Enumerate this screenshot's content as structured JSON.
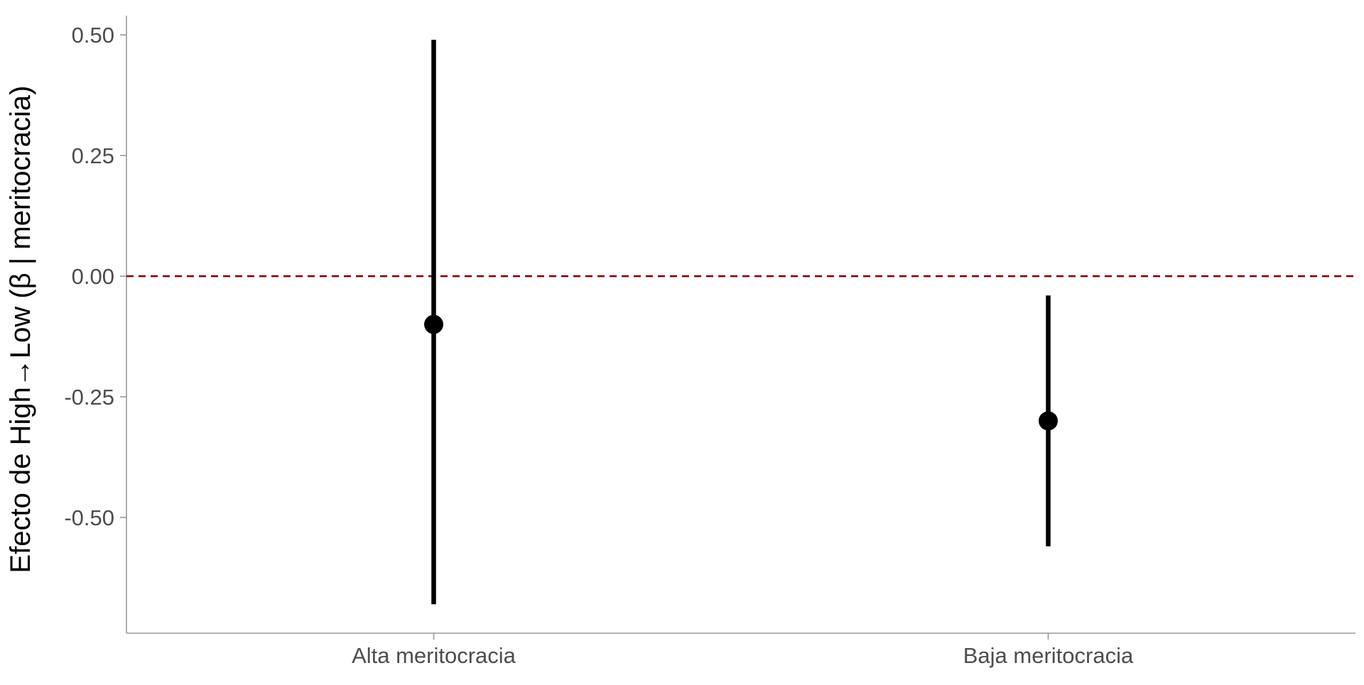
{
  "chart_data": {
    "type": "scatter",
    "subtype": "point-range",
    "title": "",
    "xlabel": "",
    "ylabel": "Efecto de High→Low (β | meritocracia)",
    "categories": [
      "Alta meritocracia",
      "Baja meritocracia"
    ],
    "series": [
      {
        "estimate": [
          -0.1,
          -0.3
        ],
        "ci_low": [
          -0.68,
          -0.56
        ],
        "ci_high": [
          0.49,
          -0.04
        ]
      }
    ],
    "ylim": [
      -0.74,
      0.54
    ],
    "yticks": [
      0.5,
      0.25,
      0.0,
      -0.25,
      -0.5
    ],
    "ytick_labels": [
      "0.50",
      "0.25",
      "0.00",
      "-0.25",
      "-0.50"
    ],
    "reference_line": {
      "y": 0.0,
      "style": "dashed",
      "color": "#8b0000"
    },
    "grid": false,
    "legend": "none",
    "colors": {
      "points": "#000000",
      "axis": "#999999",
      "tick_label": "#4d4d4d",
      "axis_title": "#000000"
    }
  }
}
